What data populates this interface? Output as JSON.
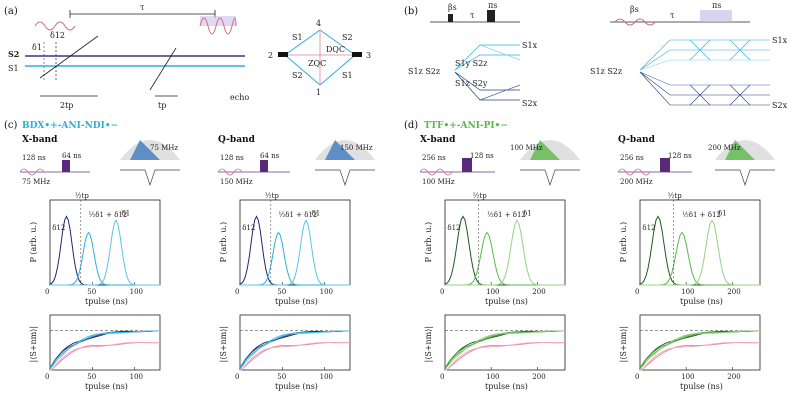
{
  "panels": {
    "a": {
      "label": "(a)",
      "tau": "τ",
      "delta12": "δ12",
      "delta1": "δ1",
      "s2": "S2",
      "s1": "S1",
      "two_tp": "2tp",
      "tp": "tp",
      "echo": "echo",
      "levels": [
        "4",
        "2",
        "3",
        "1"
      ],
      "dqc": "DQC",
      "zqc": "ZQC",
      "diamond_s1": "S1",
      "diamond_s2": "S2"
    },
    "b": {
      "label": "(b)",
      "beta_s": "βs",
      "tau": "τ",
      "pi_s": "πs",
      "s1x": "S1x",
      "s1z_s2z": "S1z S2z",
      "s1y_s2z": "S1y S2z",
      "s1z_s2y": "S1z S2y",
      "s2x": "S2x"
    },
    "c": {
      "label": "(c)",
      "title": "BDX•+-ANI-NDI•−",
      "xband": "X-band",
      "qband": "Q-band",
      "x_pulse": {
        "t1": "128 ns",
        "t2": "64 ns",
        "f1": "75 MHz",
        "f2": "75 MHz"
      },
      "q_pulse": {
        "t1": "128 ns",
        "t2": "64 ns",
        "f1": "150 MHz",
        "f2": "150 MHz"
      }
    },
    "d": {
      "label": "(d)",
      "title": "TTF•+-ANI-PI•−",
      "xband": "X-band",
      "qband": "Q-band",
      "x_pulse": {
        "t1": "256 ns",
        "t2": "128 ns",
        "f1": "100 MHz",
        "f2": "100 MHz"
      },
      "q_pulse": {
        "t1": "256 ns",
        "t2": "128 ns",
        "f1": "200 MHz",
        "f2": "200 MHz"
      }
    }
  },
  "axis_text": {
    "p_ylabel": "P (arb. u.)",
    "s_ylabel": "|⟨S+nm⟩|",
    "xlabel": "tpulse (ns)",
    "half_tp": "½tp",
    "d12": "δ12",
    "d1": "δ1",
    "sum": "½δ1 + δ12"
  },
  "chart_data": [
    {
      "type": "line",
      "id": "c-x-P",
      "xlim": [
        0,
        130
      ],
      "xticks": [
        "0",
        "50",
        "100"
      ]
    },
    {
      "type": "line",
      "id": "c-q-P",
      "xlim": [
        0,
        130
      ],
      "xticks": [
        "0",
        "50",
        "100"
      ]
    },
    {
      "type": "line",
      "id": "d-x-P",
      "xlim": [
        0,
        260
      ],
      "xticks": [
        "0",
        "100",
        "200"
      ]
    },
    {
      "type": "line",
      "id": "d-q-P",
      "xlim": [
        0,
        260
      ],
      "xticks": [
        "0",
        "100",
        "200"
      ]
    },
    {
      "type": "line",
      "id": "c-x-S",
      "xlim": [
        0,
        130
      ],
      "xticks": [
        "0",
        "50",
        "100"
      ],
      "ref": 0.25
    },
    {
      "type": "line",
      "id": "c-q-S",
      "xlim": [
        0,
        130
      ],
      "xticks": [
        "0",
        "50",
        "100"
      ],
      "ref": 0.25
    },
    {
      "type": "line",
      "id": "d-x-S",
      "xlim": [
        0,
        260
      ],
      "xticks": [
        "0",
        "100",
        "200"
      ],
      "ref": 0.25
    },
    {
      "type": "line",
      "id": "d-q-S",
      "xlim": [
        0,
        260
      ],
      "xticks": [
        "0",
        "100",
        "200"
      ],
      "ref": 0.25
    }
  ]
}
